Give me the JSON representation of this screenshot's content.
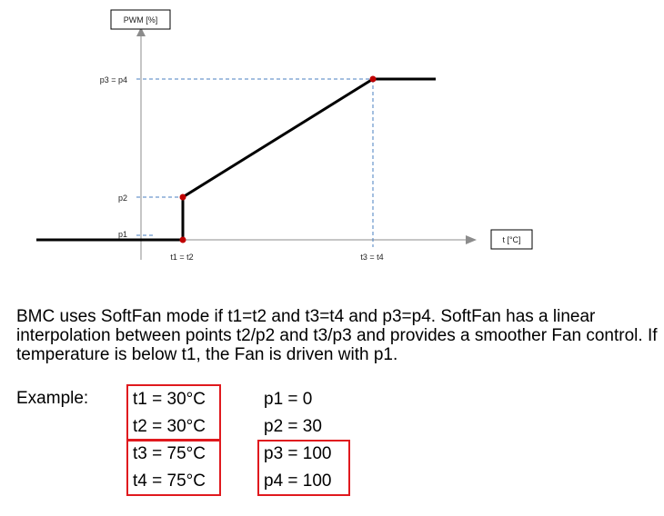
{
  "diagram": {
    "y_axis_label": "PWM [%]",
    "x_axis_label": "t [°C]",
    "y_ticks": [
      "p3 = p4",
      "p2",
      "p1"
    ],
    "x_ticks": [
      "t1 = t2",
      "t3 = t4"
    ],
    "colors": {
      "curve": "#000000",
      "points": "#c00000",
      "guides": "#4a7fc1",
      "axes": "#8c8c8c"
    }
  },
  "description": "BMC uses SoftFan mode if t1=t2 and t3=t4 and p3=p4. SoftFan has a linear interpolation between points t2/p2 and t3/p3 and provides a smoother Fan control. If temperature is below t1, the Fan is driven with p1.",
  "example": {
    "label": "Example:",
    "t_values": [
      "t1 = 30°C",
      "t2 = 30°C",
      "t3 = 75°C",
      "t4 = 75°C"
    ],
    "p_values": [
      "p1 = 0",
      "p2 = 30",
      "p3 = 100",
      "p4 = 100"
    ],
    "highlight_color": "#e0191e"
  }
}
